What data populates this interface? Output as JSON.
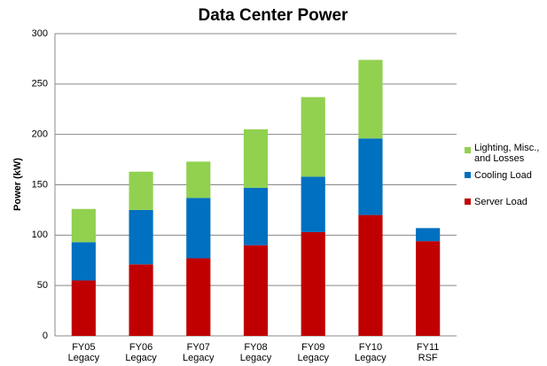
{
  "chart_data": {
    "type": "stacked-bar",
    "title": "Data Center Power",
    "y_label": "Power (kW)",
    "categories": [
      "FY05\nLegacy",
      "FY06\nLegacy",
      "FY07\nLegacy",
      "FY08\nLegacy",
      "FY09\nLegacy",
      "FY10\nLegacy",
      "FY11\nRSF"
    ],
    "series": [
      {
        "name": "Server Load",
        "color": "#c00000",
        "values": [
          55,
          71,
          77,
          90,
          103,
          120,
          94
        ]
      },
      {
        "name": "Cooling Load",
        "color": "#0070c0",
        "values": [
          38,
          54,
          60,
          57,
          55,
          76,
          13
        ]
      },
      {
        "name": "Lighting, Misc.,\nand Losses",
        "color": "#92d050",
        "values": [
          33,
          38,
          36,
          58,
          79,
          78,
          0
        ]
      }
    ],
    "ylim": [
      0,
      300
    ],
    "yticks": [
      0,
      50,
      100,
      150,
      200,
      250,
      300
    ],
    "grid": true,
    "legend": "right"
  }
}
